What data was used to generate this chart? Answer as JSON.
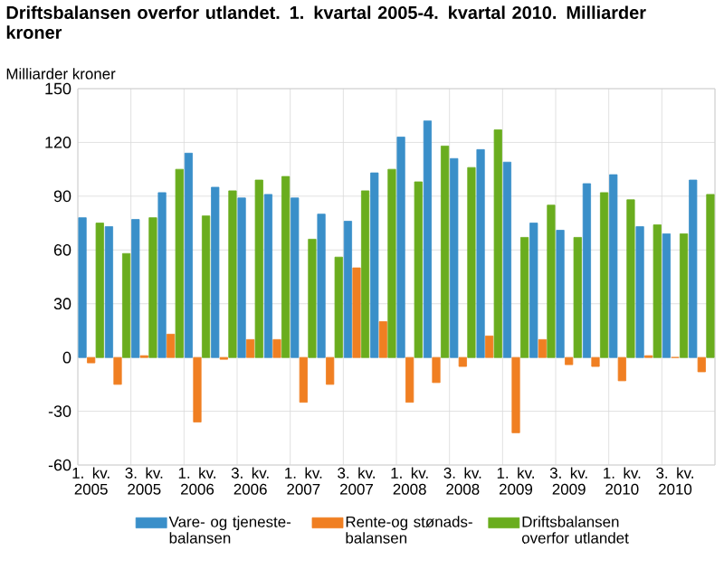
{
  "chart_data": {
    "type": "bar",
    "title": "Driftsbalansen overfor utlandet. 1. kvartal 2005-4. kvartal 2010. Milliarder kroner",
    "ylabel": "Milliarder kroner",
    "categories": [
      "1. kv. 2005",
      null,
      "3. kv. 2005",
      null,
      "1. kv. 2006",
      null,
      "3. kv. 2006",
      null,
      "1. kv. 2007",
      null,
      "3. kv. 2007",
      null,
      "1. kv. 2008",
      null,
      "3. kv. 2008",
      null,
      "1. kv. 2009",
      null,
      "3. kv. 2009",
      null,
      "1. kv. 2010",
      null,
      "3. kv. 2010",
      null
    ],
    "series": [
      {
        "name": "Vare- og tjeneste-balansen",
        "color": "#3a8fc9",
        "values": [
          78,
          73,
          77,
          92,
          114,
          95,
          89,
          91,
          89,
          80,
          76,
          103,
          123,
          132,
          111,
          116,
          109,
          75,
          71,
          97,
          102,
          73,
          69,
          99
        ]
      },
      {
        "name": "Rente-og stønads-balansen",
        "color": "#f07f22",
        "values": [
          -3,
          -15,
          1,
          13,
          -36,
          -1,
          10,
          10,
          -25,
          -15,
          50,
          20,
          -25,
          -14,
          -5,
          12,
          -42,
          10,
          -4,
          -5,
          -13,
          1,
          0,
          -8
        ]
      },
      {
        "name": "Driftsbalansen overfor utlandet",
        "color": "#6aad1e",
        "values": [
          75,
          58,
          78,
          105,
          79,
          93,
          99,
          101,
          66,
          56,
          93,
          105,
          98,
          118,
          106,
          127,
          67,
          85,
          67,
          92,
          88,
          74,
          69,
          91
        ]
      }
    ],
    "ylim": [
      -60,
      150
    ],
    "yticks": [
      -60,
      -30,
      0,
      30,
      60,
      90,
      120,
      150
    ],
    "grid": true,
    "legend": "bottom"
  }
}
